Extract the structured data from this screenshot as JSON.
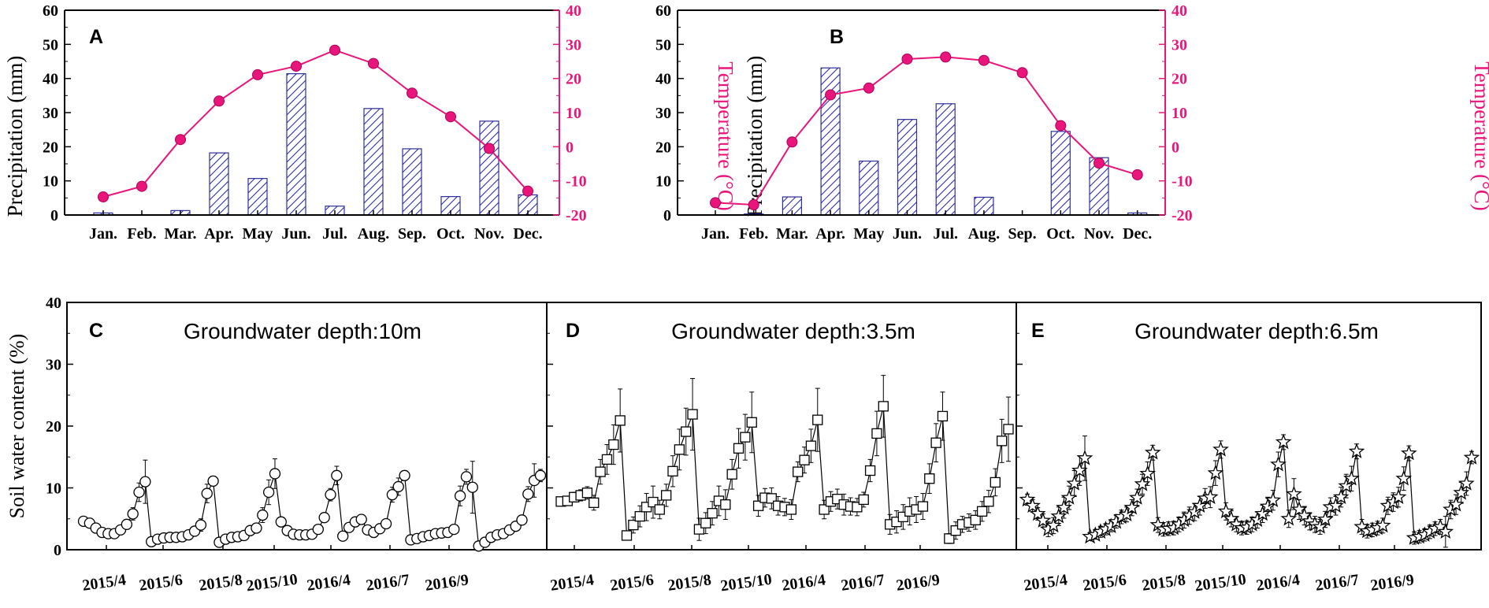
{
  "colors": {
    "bar_edge": "#2e2e9e",
    "temp": "#e8157a",
    "axis": "#000000",
    "series": "#000000"
  },
  "top_panels": [
    {
      "panel_label": "A",
      "precip_label": "Precipitation (mm)",
      "temp_label": "Temperature (°C)",
      "months": [
        "Jan.",
        "Feb.",
        "Mar.",
        "Apr.",
        "May",
        "Jun.",
        "Jul.",
        "Aug.",
        "Sep.",
        "Oct.",
        "Nov.",
        "Dec."
      ],
      "y_ticks": [
        "0",
        "10",
        "20",
        "30",
        "40",
        "50",
        "60"
      ],
      "y2_ticks": [
        "-20",
        "-10",
        "0",
        "10",
        "20",
        "30",
        "40"
      ]
    },
    {
      "panel_label": "B",
      "precip_label": "Precipitation (mm)",
      "temp_label": "Temperature (°C)",
      "months": [
        "Jan.",
        "Feb.",
        "Mar.",
        "Apr.",
        "May",
        "Jun.",
        "Jul.",
        "Aug.",
        "Sep.",
        "Oct.",
        "Nov.",
        "Dec."
      ],
      "y_ticks": [
        "0",
        "10",
        "20",
        "30",
        "40",
        "50",
        "60"
      ],
      "y2_ticks": [
        "-20",
        "-10",
        "0",
        "10",
        "20",
        "30",
        "40"
      ]
    }
  ],
  "bottom": {
    "ylabel": "Soil water content (%)",
    "y_ticks": [
      "0",
      "10",
      "20",
      "30",
      "40"
    ],
    "panels": [
      {
        "panel_label": "C",
        "title": "Groundwater depth:10m",
        "x_ticks": [
          "2015/4",
          "2015/6",
          "2015/8",
          "2015/10",
          "2016/4",
          "2016/7",
          "2016/9"
        ]
      },
      {
        "panel_label": "D",
        "title": "Groundwater depth:3.5m",
        "x_ticks": [
          "2015/4",
          "2015/6",
          "2015/8",
          "2015/10",
          "2016/4",
          "2016/7",
          "2016/9"
        ]
      },
      {
        "panel_label": "E",
        "title": "Groundwater depth:6.5m",
        "x_ticks": [
          "2015/4",
          "2015/6",
          "2015/8",
          "2015/10",
          "2016/4",
          "2016/7",
          "2016/9"
        ]
      }
    ]
  },
  "chart_data": [
    {
      "id": "A",
      "type": "bar+line",
      "title": "",
      "xlabel": "",
      "ylabel": "Precipitation (mm)",
      "y2label": "Temperature (°C)",
      "categories": [
        "Jan.",
        "Feb.",
        "Mar.",
        "Apr.",
        "May",
        "Jun.",
        "Jul.",
        "Aug.",
        "Sep.",
        "Oct.",
        "Nov.",
        "Dec."
      ],
      "series": [
        {
          "name": "Precipitation",
          "axis": "left",
          "style": "hatched-bar",
          "values": [
            0.6,
            0,
            1.3,
            18.2,
            10.7,
            41.4,
            2.6,
            31.2,
            19.4,
            5.4,
            27.5,
            5.9
          ]
        },
        {
          "name": "Temperature",
          "axis": "right",
          "style": "line-markers",
          "values": [
            -14.7,
            -11.6,
            2.1,
            13.4,
            21.1,
            23.6,
            28.3,
            24.4,
            15.7,
            8.8,
            -0.5,
            -13.0
          ]
        }
      ],
      "ylim": [
        0,
        60
      ],
      "y2lim": [
        -20,
        40
      ]
    },
    {
      "id": "B",
      "type": "bar+line",
      "title": "",
      "xlabel": "",
      "ylabel": "Precipitation (mm)",
      "y2label": "Temperature (°C)",
      "categories": [
        "Jan.",
        "Feb.",
        "Mar.",
        "Apr.",
        "May",
        "Jun.",
        "Jul.",
        "Aug.",
        "Sep.",
        "Oct.",
        "Nov.",
        "Dec."
      ],
      "series": [
        {
          "name": "Precipitation",
          "axis": "left",
          "style": "hatched-bar",
          "values": [
            0,
            0.3,
            5.3,
            43.1,
            15.8,
            28.0,
            32.6,
            5.2,
            0,
            24.5,
            16.8,
            0.6
          ]
        },
        {
          "name": "Temperature",
          "axis": "right",
          "style": "line-markers",
          "values": [
            -16.4,
            -17.0,
            1.4,
            15.2,
            17.2,
            25.7,
            26.3,
            25.3,
            21.7,
            6.2,
            -4.8,
            -8.2
          ]
        }
      ],
      "ylim": [
        0,
        60
      ],
      "y2lim": [
        -20,
        40
      ]
    },
    {
      "id": "C",
      "type": "line",
      "title": "Groundwater depth:10m",
      "marker": "circle",
      "xlabel": "",
      "ylabel": "Soil water content (%)",
      "ylim": [
        0,
        40
      ],
      "x_ticks": [
        "2015/4",
        "2015/6",
        "2015/8",
        "2015/10",
        "2016/4",
        "2016/7",
        "2016/9"
      ],
      "values": [
        4.6,
        4.3,
        3.5,
        2.8,
        2.6,
        2.6,
        3.2,
        4.1,
        5.8,
        9.3,
        11.0,
        1.3,
        1.7,
        1.9,
        2.0,
        2.0,
        2.1,
        2.4,
        3.0,
        4.0,
        9.1,
        11.1,
        1.2,
        1.7,
        2.0,
        2.1,
        2.3,
        3.1,
        3.5,
        5.6,
        9.3,
        12.3,
        4.5,
        3.1,
        2.5,
        2.4,
        2.4,
        2.5,
        3.3,
        5.2,
        8.9,
        12.0,
        2.2,
        3.6,
        4.5,
        4.9,
        3.2,
        2.8,
        3.4,
        4.2,
        8.9,
        10.2,
        12.0,
        1.6,
        1.8,
        2.1,
        2.3,
        2.6,
        2.7,
        2.8,
        3.3,
        8.7,
        11.8,
        10.1,
        0.6,
        1.2,
        2.0,
        2.4,
        2.6,
        3.2,
        3.8,
        4.8,
        9.0,
        11.2,
        12.0
      ],
      "error": [
        0.3,
        0.3,
        0.3,
        0.3,
        0.2,
        0.2,
        0.3,
        0.5,
        1.0,
        1.5,
        3.5,
        0.3,
        0.3,
        0.3,
        0.3,
        0.3,
        0.3,
        0.4,
        0.5,
        1.0,
        1.5,
        0.8,
        0.3,
        0.3,
        0.3,
        0.3,
        0.4,
        0.4,
        0.5,
        1.2,
        2.0,
        2.4,
        0.6,
        0.4,
        0.3,
        0.3,
        0.3,
        0.3,
        0.4,
        0.6,
        1.0,
        1.5,
        0.4,
        0.5,
        0.5,
        0.6,
        0.4,
        0.3,
        0.4,
        0.5,
        1.2,
        1.4,
        0.8,
        0.3,
        0.3,
        0.3,
        0.3,
        0.4,
        0.4,
        0.4,
        0.4,
        1.6,
        1.2,
        4.2,
        0.4,
        0.3,
        0.3,
        0.3,
        0.3,
        0.4,
        0.4,
        0.6,
        1.2,
        2.7,
        1.0
      ]
    },
    {
      "id": "D",
      "type": "line",
      "title": "Groundwater depth:3.5m",
      "marker": "square",
      "xlabel": "",
      "ylabel": "Soil water content (%)",
      "ylim": [
        0,
        40
      ],
      "x_ticks": [
        "2015/4",
        "2015/6",
        "2015/8",
        "2015/10",
        "2016/4",
        "2016/7",
        "2016/9"
      ],
      "values": [
        7.8,
        7.9,
        8.5,
        8.8,
        9.2,
        7.6,
        12.6,
        14.6,
        17.0,
        20.9,
        2.3,
        4.0,
        5.4,
        6.9,
        7.7,
        6.5,
        8.8,
        12.7,
        16.2,
        19.1,
        21.9,
        3.3,
        4.3,
        5.9,
        7.9,
        7.3,
        12.2,
        16.4,
        18.2,
        20.6,
        7.1,
        8.4,
        8.3,
        7.1,
        6.9,
        6.5,
        12.6,
        14.5,
        16.8,
        21.0,
        6.5,
        7.8,
        8.2,
        7.3,
        7.0,
        6.9,
        8.1,
        12.8,
        18.8,
        23.2,
        4.1,
        4.5,
        5.3,
        6.2,
        6.5,
        7.0,
        11.5,
        17.3,
        21.6,
        1.8,
        3.1,
        4.1,
        4.4,
        4.8,
        6.2,
        7.8,
        10.9,
        17.6,
        19.5
      ],
      "error": [
        0.6,
        0.7,
        0.8,
        0.9,
        1.0,
        1.2,
        2.0,
        2.4,
        3.2,
        5.1,
        0.5,
        1.3,
        1.7,
        2.2,
        2.6,
        1.5,
        1.8,
        2.5,
        3.3,
        3.8,
        5.8,
        1.8,
        1.7,
        1.9,
        2.4,
        2.4,
        2.4,
        3.2,
        3.7,
        4.9,
        1.7,
        1.5,
        1.7,
        1.5,
        1.4,
        1.6,
        1.6,
        2.1,
        2.7,
        5.1,
        1.5,
        1.6,
        1.6,
        1.7,
        1.4,
        1.4,
        1.2,
        1.8,
        3.6,
        5.0,
        1.6,
        1.8,
        2.0,
        2.2,
        2.1,
        2.1,
        2.4,
        3.1,
        3.9,
        0.8,
        1.4,
        1.3,
        1.4,
        1.5,
        1.6,
        1.8,
        2.2,
        3.5,
        5.2
      ]
    },
    {
      "id": "E",
      "type": "line",
      "title": "Groundwater depth:6.5m",
      "marker": "star",
      "xlabel": "",
      "ylabel": "Soil water content (%)",
      "ylim": [
        0,
        40
      ],
      "x_ticks": [
        "2015/4",
        "2015/6",
        "2015/8",
        "2015/10",
        "2016/4",
        "2016/7",
        "2016/9"
      ],
      "values": [
        8.1,
        7.1,
        5.8,
        4.7,
        3.3,
        3.9,
        5.4,
        6.8,
        8.4,
        10.7,
        12.8,
        14.8,
        2.1,
        2.4,
        2.9,
        3.3,
        3.8,
        4.5,
        5.3,
        5.7,
        6.8,
        8.4,
        10.6,
        12.3,
        15.7,
        4.0,
        3.3,
        3.4,
        3.5,
        4.1,
        4.8,
        5.5,
        6.1,
        7.1,
        8.3,
        8.5,
        12.4,
        16.2,
        6.2,
        5.0,
        4.1,
        3.5,
        3.6,
        4.1,
        4.8,
        5.8,
        7.0,
        8.0,
        13.8,
        17.4,
        5.0,
        9.0,
        6.5,
        5.5,
        4.6,
        4.1,
        3.7,
        4.9,
        6.9,
        7.1,
        8.5,
        10.3,
        11.5,
        15.9,
        3.7,
        3.0,
        3.2,
        3.5,
        3.9,
        7.1,
        7.7,
        8.5,
        11.5,
        15.6,
        1.9,
        2.1,
        2.4,
        2.9,
        3.4,
        3.7,
        2.9,
        6.5,
        7.3,
        9.2,
        10.7,
        14.9
      ],
      "error": [
        0.9,
        1.0,
        1.0,
        1.1,
        1.2,
        1.3,
        1.5,
        1.7,
        1.9,
        2.1,
        2.4,
        3.6,
        0.6,
        0.7,
        0.9,
        0.9,
        0.9,
        1.0,
        1.1,
        1.2,
        1.3,
        1.4,
        1.6,
        1.9,
        1.2,
        1.2,
        1.1,
        1.1,
        1.1,
        1.2,
        1.3,
        1.4,
        1.4,
        1.5,
        1.6,
        1.7,
        2.0,
        1.4,
        1.4,
        1.3,
        1.2,
        1.1,
        1.1,
        1.2,
        1.3,
        1.4,
        1.5,
        1.6,
        2.0,
        1.2,
        1.4,
        2.5,
        1.6,
        1.5,
        1.4,
        1.3,
        1.2,
        1.3,
        1.5,
        1.5,
        1.6,
        1.9,
        2.0,
        1.2,
        1.2,
        1.1,
        1.1,
        1.1,
        1.2,
        1.4,
        1.5,
        1.6,
        1.9,
        1.2,
        1.0,
        1.0,
        1.0,
        1.1,
        1.1,
        1.2,
        2.5,
        1.5,
        1.6,
        1.7,
        1.9,
        1.0
      ]
    }
  ]
}
